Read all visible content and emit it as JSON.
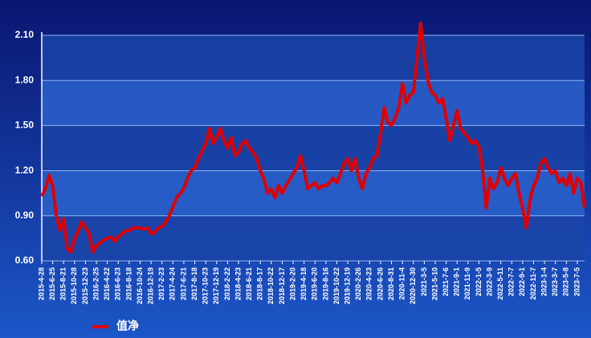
{
  "chart_data": {
    "type": "line",
    "categories": [
      "2015-4-28",
      null,
      null,
      "2015-6-25",
      null,
      null,
      "2015-8-21",
      null,
      null,
      "2015-10-28",
      null,
      null,
      "2015-12-23",
      null,
      null,
      "2016-2-25",
      null,
      null,
      "2016-4-22",
      null,
      null,
      "2016-6-23",
      null,
      null,
      "2016-8-18",
      null,
      null,
      "2016-10-24",
      null,
      null,
      "2016-12-19",
      null,
      null,
      "2017-2-23",
      null,
      null,
      "2017-4-24",
      null,
      null,
      "2017-6-21",
      null,
      null,
      "2017-8-18",
      null,
      null,
      "2017-10-23",
      null,
      null,
      "2017-12-19",
      null,
      null,
      "2018-2-22",
      null,
      null,
      "2018-4-23",
      null,
      null,
      "2018-6-21",
      null,
      null,
      "2018-8-17",
      null,
      null,
      "2018-10-22",
      null,
      null,
      "2018-12-17",
      null,
      null,
      "2019-2-20",
      null,
      null,
      "2019-4-18",
      null,
      null,
      "2019-6-20",
      null,
      null,
      "2019-8-16",
      null,
      null,
      "2019-10-22",
      null,
      null,
      "2019-12-19",
      null,
      null,
      "2020-2-26",
      null,
      null,
      "2020-4-23",
      null,
      null,
      "2020-6-26",
      null,
      null,
      "2020-8-31",
      null,
      null,
      "2020-11-4",
      null,
      null,
      "2020-12-30",
      null,
      null,
      "2021-3-5",
      null,
      null,
      "2021-5-10",
      null,
      null,
      "2021-7-6",
      null,
      null,
      "2021-9-1",
      null,
      null,
      "2021-11-9",
      null,
      null,
      "2022-1-5",
      null,
      null,
      "2022-3-9",
      null,
      null,
      "2022-5-11",
      null,
      null,
      "2022-7-7",
      null,
      null,
      "2022-9-1",
      null,
      null,
      "2022-11-7",
      null,
      null,
      "2023-1-4",
      null,
      null,
      "2023-3-7",
      null,
      null,
      "2023-5-8",
      null,
      null,
      "2023-7-5",
      null,
      null
    ],
    "series": [
      {
        "name": "值净",
        "color": "#e00000",
        "values": [
          1.03,
          1.08,
          1.17,
          1.1,
          0.9,
          0.8,
          0.88,
          0.68,
          0.66,
          0.75,
          0.8,
          0.86,
          0.82,
          0.78,
          0.66,
          0.7,
          0.72,
          0.74,
          0.75,
          0.76,
          0.73,
          0.76,
          0.78,
          0.8,
          0.8,
          0.82,
          0.82,
          0.82,
          0.81,
          0.82,
          0.78,
          0.79,
          0.82,
          0.83,
          0.86,
          0.9,
          0.96,
          1.02,
          1.05,
          1.08,
          1.15,
          1.2,
          1.22,
          1.28,
          1.33,
          1.38,
          1.48,
          1.38,
          1.42,
          1.48,
          1.4,
          1.35,
          1.42,
          1.3,
          1.32,
          1.38,
          1.4,
          1.35,
          1.32,
          1.28,
          1.2,
          1.14,
          1.05,
          1.08,
          1.02,
          1.1,
          1.05,
          1.1,
          1.14,
          1.18,
          1.22,
          1.3,
          1.2,
          1.08,
          1.1,
          1.12,
          1.08,
          1.1,
          1.1,
          1.12,
          1.15,
          1.12,
          1.18,
          1.25,
          1.28,
          1.2,
          1.28,
          1.15,
          1.08,
          1.18,
          1.22,
          1.28,
          1.3,
          1.45,
          1.62,
          1.52,
          1.5,
          1.55,
          1.62,
          1.78,
          1.65,
          1.7,
          1.72,
          1.95,
          2.18,
          1.95,
          1.8,
          1.72,
          1.7,
          1.65,
          1.68,
          1.55,
          1.4,
          1.5,
          1.6,
          1.48,
          1.45,
          1.42,
          1.38,
          1.4,
          1.36,
          1.2,
          0.95,
          1.15,
          1.08,
          1.12,
          1.22,
          1.15,
          1.1,
          1.15,
          1.18,
          1.05,
          0.95,
          0.82,
          1.0,
          1.1,
          1.15,
          1.25,
          1.28,
          1.22,
          1.18,
          1.2,
          1.12,
          1.15,
          1.1,
          1.18,
          1.05,
          1.15,
          1.12,
          0.95
        ]
      }
    ],
    "ylim": [
      0.6,
      2.1
    ],
    "yticks": [
      {
        "value": 0.6,
        "label": "0.60"
      },
      {
        "value": 0.9,
        "label": "0.90"
      },
      {
        "value": 1.2,
        "label": "1.20"
      },
      {
        "value": 1.5,
        "label": "1.50"
      },
      {
        "value": 1.8,
        "label": "1.80"
      },
      {
        "value": 2.1,
        "label": "2.10"
      }
    ],
    "grid": true
  }
}
